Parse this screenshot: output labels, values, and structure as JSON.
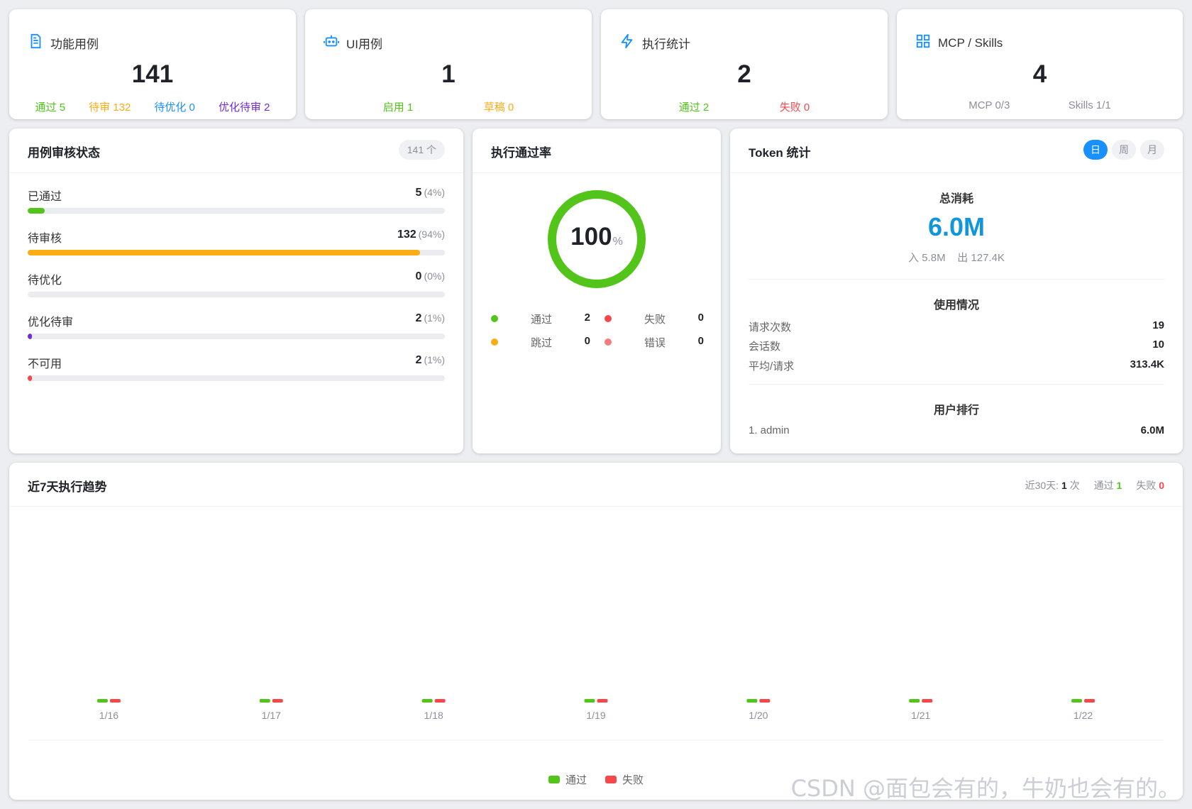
{
  "stats": [
    {
      "title": "功能用例",
      "icon": "document-icon",
      "value": "141",
      "subs": [
        {
          "text": "通过 5",
          "color": "green"
        },
        {
          "text": "待审 132",
          "color": "orange"
        },
        {
          "text": "待优化 0",
          "color": "blue"
        },
        {
          "text": "优化待审 2",
          "color": "purple"
        }
      ]
    },
    {
      "title": "UI用例",
      "icon": "robot-icon",
      "value": "1",
      "subs": [
        {
          "text": "启用 1",
          "color": "green"
        },
        {
          "text": "草稿 0",
          "color": "orange"
        }
      ]
    },
    {
      "title": "执行统计",
      "icon": "lightning-icon",
      "value": "2",
      "subs": [
        {
          "text": "通过 2",
          "color": "green"
        },
        {
          "text": "失败 0",
          "color": "red"
        }
      ]
    },
    {
      "title": "MCP / Skills",
      "icon": "grid-icon",
      "value": "4",
      "subs": [
        {
          "text": "MCP 0/3",
          "color": "gray"
        },
        {
          "text": "Skills 1/1",
          "color": "gray"
        }
      ]
    }
  ],
  "review": {
    "title": "用例审核状态",
    "count_badge": "141 个",
    "items": [
      {
        "label": "已通过",
        "value": "5",
        "pct": "(4%)",
        "fraction": 0.04,
        "color": "#52c41a"
      },
      {
        "label": "待审核",
        "value": "132",
        "pct": "(94%)",
        "fraction": 0.94,
        "color": "#faad14"
      },
      {
        "label": "待优化",
        "value": "0",
        "pct": "(0%)",
        "fraction": 0,
        "color": "#1890ff"
      },
      {
        "label": "优化待审",
        "value": "2",
        "pct": "(1%)",
        "fraction": 0.01,
        "color": "#722ed1"
      },
      {
        "label": "不可用",
        "value": "2",
        "pct": "(1%)",
        "fraction": 0.01,
        "color": "#f5484b"
      }
    ]
  },
  "passrate": {
    "title": "执行通过率",
    "value": "100",
    "unit": "%",
    "fraction": 1.0,
    "ring_color": "#52c41a",
    "legend": [
      {
        "name": "通过",
        "value": "2",
        "color": "#52c41a"
      },
      {
        "name": "失败",
        "value": "0",
        "color": "#f5484b"
      },
      {
        "name": "跳过",
        "value": "0",
        "color": "#faad14"
      },
      {
        "name": "错误",
        "value": "0",
        "color": "#f77c7e"
      }
    ]
  },
  "token": {
    "title": "Token 统计",
    "periods": [
      "日",
      "周",
      "月"
    ],
    "active_period": "日",
    "total_label": "总消耗",
    "total_value": "6.0M",
    "in_out": "入 5.8M    出 127.4K",
    "usage_title": "使用情况",
    "usage": [
      {
        "k": "请求次数",
        "v": "19"
      },
      {
        "k": "会话数",
        "v": "10"
      },
      {
        "k": "平均/请求",
        "v": "313.4K",
        "accent": true
      }
    ],
    "ranking_title": "用户排行",
    "ranking": [
      {
        "k": "1. admin",
        "v": "6.0M"
      }
    ]
  },
  "trend": {
    "title": "近7天执行趋势",
    "meta_30d_label": "近30天:",
    "meta_30d_value": "1",
    "meta_30d_unit": "次",
    "meta_pass_label": "通过",
    "meta_pass_value": "1",
    "meta_fail_label": "失败",
    "meta_fail_value": "0"
  },
  "chart_data": {
    "type": "bar",
    "categories": [
      "1/16",
      "1/17",
      "1/18",
      "1/19",
      "1/20",
      "1/21",
      "1/22"
    ],
    "series": [
      {
        "name": "通过",
        "color": "#52c41a",
        "values": [
          0,
          0,
          0,
          0,
          0,
          0,
          0
        ]
      },
      {
        "name": "失败",
        "color": "#f5484b",
        "values": [
          0,
          0,
          0,
          0,
          0,
          0,
          0
        ]
      }
    ],
    "legend": "bottom",
    "grid": false
  },
  "watermark": "CSDN @面包会有的，牛奶也会有的。"
}
